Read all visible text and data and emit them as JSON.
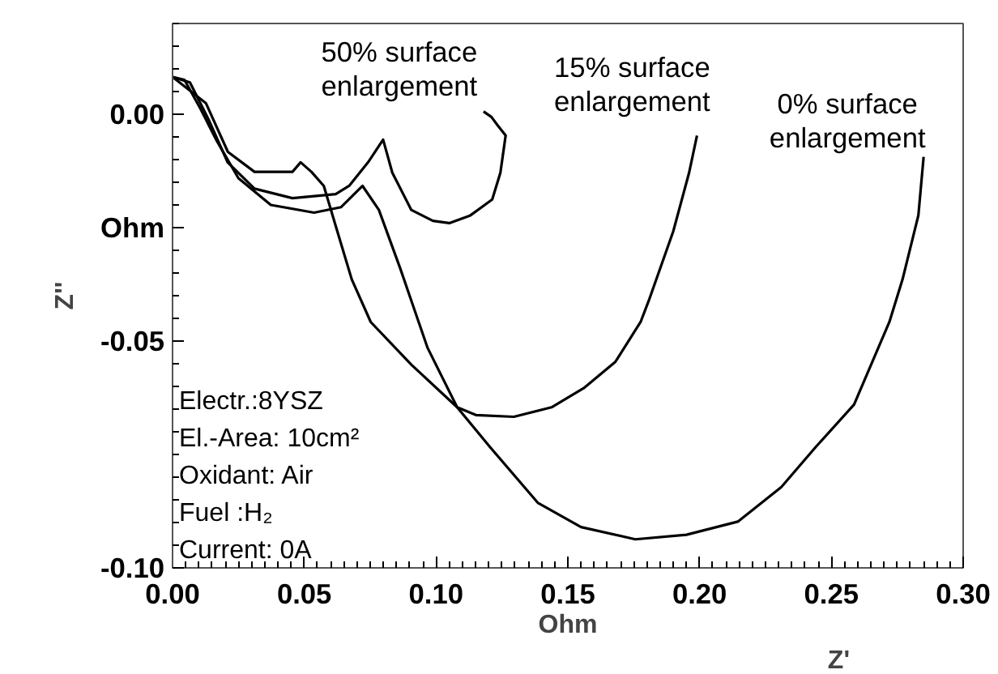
{
  "chart_data": {
    "type": "line",
    "xlabel": "Ohm",
    "ylabel": "Z''",
    "xlim": [
      0,
      0.3
    ],
    "ylim": [
      -0.1,
      0.02
    ],
    "xticks": [
      {
        "value": 0,
        "label": "0.00"
      },
      0.05,
      {
        "value": 0.1,
        "label": "0.10"
      },
      0.15,
      {
        "value": 0.2,
        "label": "0.20"
      },
      0.25,
      {
        "value": 0.3,
        "label": "0.30"
      }
    ],
    "yticks": [
      {
        "value": 0,
        "label": "0.00"
      },
      {
        "value": -0.025,
        "label": "Ohm"
      },
      -0.05,
      {
        "value": -0.1,
        "label": "-0.10"
      }
    ],
    "grid": false,
    "marker": "none",
    "line_style": "solid",
    "series": [
      {
        "name": "50% surface enlargement",
        "color": "#000000",
        "x": [
          0,
          0.0066,
          0.0137,
          0.0209,
          0.0311,
          0.0455,
          0.0619,
          0.067,
          0.0742,
          0.0799,
          0.0834,
          0.0906,
          0.0988,
          0.105,
          0.113,
          0.1213,
          0.1244,
          0.1264,
          0.1233,
          0.121,
          0.118
        ],
        "values": [
          0.0082,
          0.007,
          -0.0012,
          -0.0106,
          -0.0164,
          -0.0185,
          -0.0176,
          -0.0158,
          -0.0106,
          -0.0056,
          -0.0129,
          -0.0211,
          -0.0235,
          -0.024,
          -0.0223,
          -0.0188,
          -0.0129,
          -0.0047,
          -0.0024,
          -0.0006,
          0.0006
        ]
      },
      {
        "name": "15% surface enlargement",
        "color": "#000000",
        "x": [
          0,
          0.0127,
          0.021,
          0.0311,
          0.0455,
          0.0486,
          0.0527,
          0.0574,
          0.0619,
          0.068,
          0.0752,
          0.0906,
          0.108,
          0.1151,
          0.1295,
          0.1438,
          0.156,
          0.168,
          0.1776,
          0.1807,
          0.19,
          0.196,
          0.199
        ],
        "values": [
          0.0082,
          0.0024,
          -0.0083,
          -0.0127,
          -0.0127,
          -0.0106,
          -0.0127,
          -0.0158,
          -0.0246,
          -0.0364,
          -0.0458,
          -0.0552,
          -0.0646,
          -0.0663,
          -0.0667,
          -0.0646,
          -0.0604,
          -0.0546,
          -0.0458,
          -0.0411,
          -0.0258,
          -0.0129,
          -0.0047
        ]
      },
      {
        "name": "0% surface enlargement",
        "color": "#000000",
        "x": [
          0,
          0.0045,
          0.0106,
          0.0168,
          0.025,
          0.0373,
          0.0537,
          0.0639,
          0.0721,
          0.0783,
          0.0864,
          0.0967,
          0.108,
          0.1205,
          0.1387,
          0.155,
          0.1756,
          0.195,
          0.2145,
          0.231,
          0.244,
          0.2586,
          0.272,
          0.277,
          0.283,
          0.285
        ],
        "values": [
          0.0082,
          0.0076,
          0.0012,
          -0.0059,
          -0.0141,
          -0.02,
          -0.0217,
          -0.0205,
          -0.0158,
          -0.0211,
          -0.034,
          -0.0514,
          -0.0646,
          -0.0734,
          -0.0857,
          -0.091,
          -0.0937,
          -0.0927,
          -0.0898,
          -0.0822,
          -0.0734,
          -0.064,
          -0.0458,
          -0.0364,
          -0.0223,
          -0.0094
        ]
      }
    ],
    "annotations": [
      "Electr.:8YSZ",
      "El.-Area: 10cm²",
      "Oxidant: Air",
      "Fuel :H₂",
      "Current: 0A",
      "Z'"
    ]
  }
}
